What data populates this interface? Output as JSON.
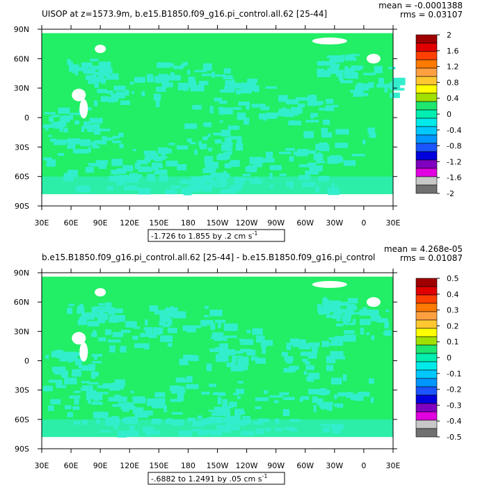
{
  "chart_data": [
    {
      "type": "heatmap",
      "title": "UISOP at z=1573.9m, b.e15.B1850.f09_g16.pi_control.all.62 [25-44]",
      "stats": {
        "mean": "mean = -0.0001388",
        "rms": "rms = 0.03107"
      },
      "xlabel": "",
      "ylabel": "",
      "x_ticks": [
        "30E",
        "60E",
        "90E",
        "120E",
        "150E",
        "180",
        "150W",
        "120W",
        "90W",
        "60W",
        "30W",
        "0",
        "30E"
      ],
      "y_ticks": [
        "90N",
        "60N",
        "30N",
        "0",
        "30S",
        "60S",
        "90S"
      ],
      "xlim": [
        30,
        390
      ],
      "ylim": [
        -90,
        90
      ],
      "range_label": "-1.726 to 1.855 by .2 cm s",
      "range_unit_exp": "-1",
      "colorbar": {
        "labels": [
          "2",
          "1.6",
          "1.2",
          "0.8",
          "0.4",
          "0",
          "-0.4",
          "-0.8",
          "-1.2",
          "-1.6",
          "-2"
        ],
        "colors": [
          "#a00000",
          "#e00000",
          "#ff4000",
          "#ff7a00",
          "#ffa040",
          "#ffc830",
          "#ffff00",
          "#a0e000",
          "#1ee66e",
          "#00eeb0",
          "#00eaea",
          "#00c8ff",
          "#0096ff",
          "#1a55ff",
          "#0000dd",
          "#8000c0",
          "#e000e0",
          "#c8c8c8",
          "#707070"
        ]
      },
      "field_colors": {
        "background": "#22ee66",
        "near_zero_negative": "#33eecc",
        "land_missing": "#ffffff"
      }
    },
    {
      "type": "heatmap",
      "title": "b.e15.B1850.f09_g16.pi_control.all.62 [25-44] - b.e15.B1850.f09_g16.pi_control",
      "stats": {
        "mean": "mean = 4.268e-05",
        "rms": "rms = 0.01087"
      },
      "xlabel": "",
      "ylabel": "",
      "x_ticks": [
        "30E",
        "60E",
        "90E",
        "120E",
        "150E",
        "180",
        "150W",
        "120W",
        "90W",
        "60W",
        "30W",
        "0",
        "30E"
      ],
      "y_ticks": [
        "90N",
        "60N",
        "30N",
        "0",
        "30S",
        "60S",
        "90S"
      ],
      "xlim": [
        30,
        390
      ],
      "ylim": [
        -90,
        90
      ],
      "range_label": "-.6882 to 1.2491 by .05 cm s",
      "range_unit_exp": "-1",
      "colorbar": {
        "labels": [
          "0.5",
          "0.4",
          "0.3",
          "0.2",
          "0.1",
          "0",
          "-0.1",
          "-0.2",
          "-0.3",
          "-0.4",
          "-0.5"
        ],
        "colors": [
          "#a00000",
          "#e00000",
          "#ff4000",
          "#ff7a00",
          "#ffa040",
          "#ffc830",
          "#ffff00",
          "#a0e000",
          "#1ee66e",
          "#00eeb0",
          "#00eaea",
          "#00c8ff",
          "#0096ff",
          "#1a55ff",
          "#0000dd",
          "#8000c0",
          "#e000e0",
          "#c8c8c8",
          "#707070"
        ]
      },
      "field_colors": {
        "background": "#22ee66",
        "near_zero_negative": "#33eecc",
        "land_missing": "#ffffff"
      }
    }
  ]
}
